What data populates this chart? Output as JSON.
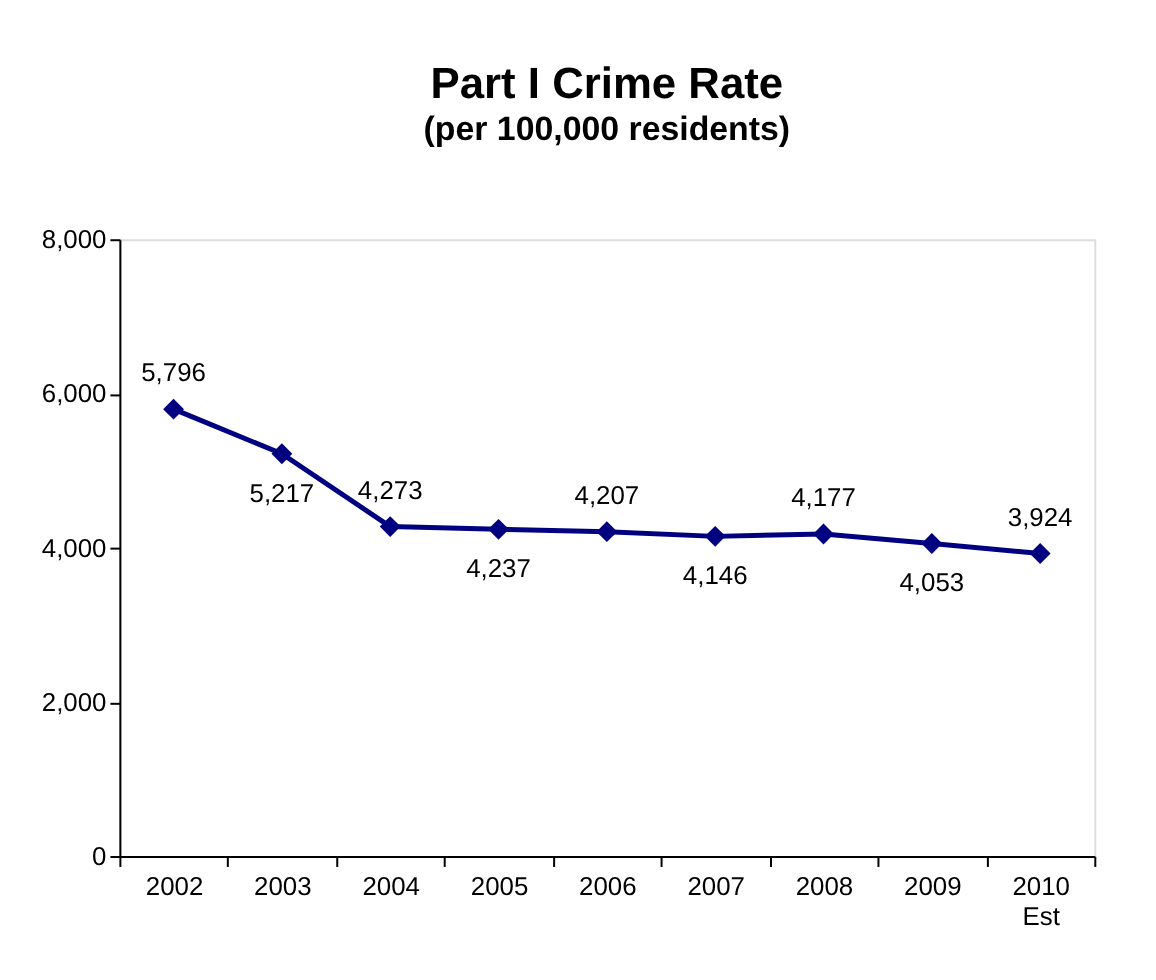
{
  "chart_data": {
    "type": "line",
    "title": "Part I Crime Rate",
    "subtitle": "(per 100,000 residents)",
    "categories": [
      "2002",
      "2003",
      "2004",
      "2005",
      "2006",
      "2007",
      "2008",
      "2009",
      "2010\nEst"
    ],
    "series": [
      {
        "color": "#000080",
        "values": [
          5796,
          5217,
          4273,
          4237,
          4207,
          4146,
          4177,
          4053,
          3924
        ]
      }
    ],
    "ylim": [
      0,
      8000
    ],
    "yticks": [
      {
        "value": 0,
        "label": "0"
      },
      {
        "value": 2000,
        "label": "2,000"
      },
      {
        "value": 4000,
        "label": "4,000"
      },
      {
        "value": 6000,
        "label": "6,000"
      },
      {
        "value": 8000,
        "label": "8,000"
      }
    ],
    "value_labels": [
      "5,796",
      "5,217",
      "4,273",
      "4,237",
      "4,207",
      "4,146",
      "4,177",
      "4,053",
      "3,924"
    ],
    "grid": false,
    "marker": "diamond",
    "line_style": "solid"
  }
}
